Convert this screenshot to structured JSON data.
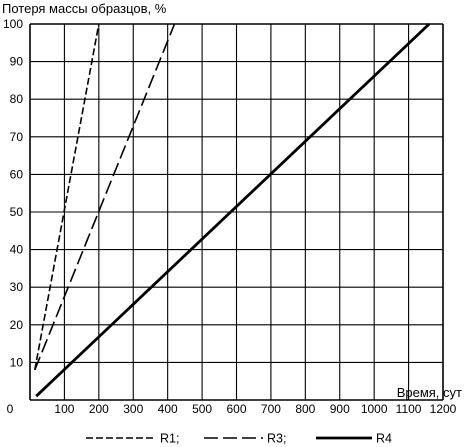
{
  "chart_data": {
    "type": "line",
    "ylabel": "Потеря массы образцов, %",
    "xlabel": "Время, сут",
    "xlim": [
      0,
      1200
    ],
    "ylim": [
      0,
      100
    ],
    "x_ticks": [
      "0",
      "100",
      "200",
      "300",
      "400",
      "500",
      "600",
      "700",
      "800",
      "900",
      "1000",
      "1100",
      "1200"
    ],
    "y_ticks": [
      "10",
      "20",
      "30",
      "40",
      "50",
      "60",
      "70",
      "80",
      "90",
      "100"
    ],
    "grid": true,
    "legend_position": "bottom",
    "series": [
      {
        "name": "R1;",
        "style": "short-dash",
        "points": [
          [
            14,
            8
          ],
          [
            200,
            100
          ]
        ]
      },
      {
        "name": "R3;",
        "style": "long-dash",
        "points": [
          [
            14,
            8
          ],
          [
            420,
            100
          ]
        ]
      },
      {
        "name": "R4",
        "style": "solid",
        "points": [
          [
            18,
            1
          ],
          [
            1160,
            100
          ]
        ]
      }
    ]
  }
}
